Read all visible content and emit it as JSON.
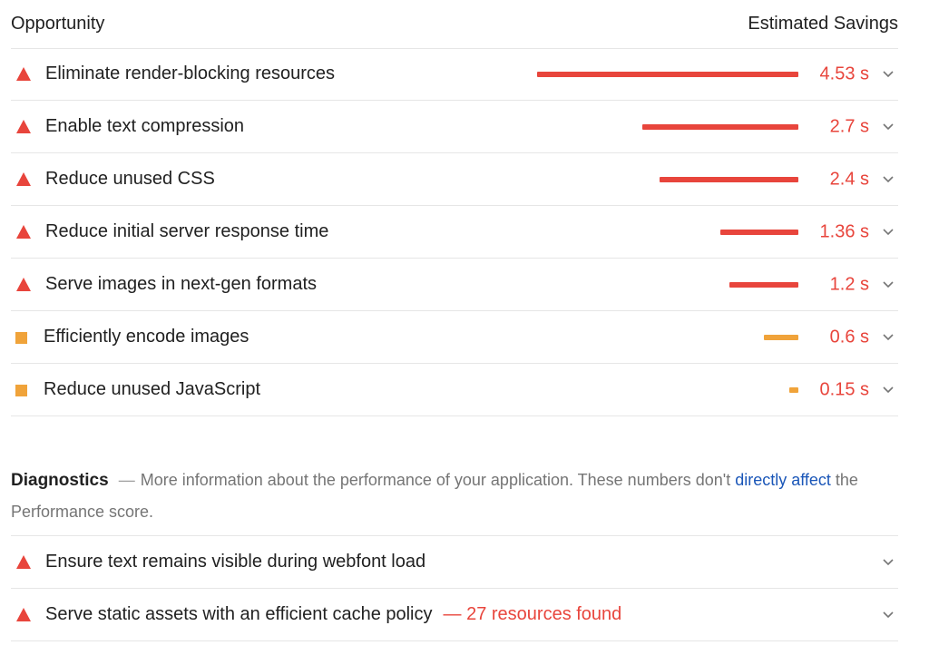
{
  "header": {
    "left_label": "Opportunity",
    "right_label": "Estimated Savings"
  },
  "opportunities": [
    {
      "title": "Eliminate render-blocking resources",
      "value": "4.53 s",
      "severity": "fail",
      "savings_seconds": 4.53
    },
    {
      "title": "Enable text compression",
      "value": "2.7 s",
      "severity": "fail",
      "savings_seconds": 2.7
    },
    {
      "title": "Reduce unused CSS",
      "value": "2.4 s",
      "severity": "fail",
      "savings_seconds": 2.4
    },
    {
      "title": "Reduce initial server response time",
      "value": "1.36 s",
      "severity": "fail",
      "savings_seconds": 1.36
    },
    {
      "title": "Serve images in next-gen formats",
      "value": "1.2 s",
      "severity": "fail",
      "savings_seconds": 1.2
    },
    {
      "title": "Efficiently encode images",
      "value": "0.6 s",
      "severity": "average",
      "savings_seconds": 0.6
    },
    {
      "title": "Reduce unused JavaScript",
      "value": "0.15 s",
      "severity": "average",
      "savings_seconds": 0.15
    }
  ],
  "diagnostics": {
    "title": "Diagnostics",
    "dash": "—",
    "description_before": "More information about the performance of your application. These numbers don't ",
    "link_text": "directly affect",
    "description_after": " the Performance score.",
    "items": [
      {
        "title": "Ensure text remains visible during webfont load",
        "extra": ""
      },
      {
        "title": "Serve static assets with an efficient cache policy",
        "extra": "— 27 resources found"
      }
    ]
  },
  "colors": {
    "fail": "#e8453c",
    "average": "#f0a33a",
    "link": "#1a56b8",
    "divider": "#e6e6e6"
  },
  "icons": {
    "fail": "warning-triangle-icon",
    "average": "orange-square-icon",
    "expand": "chevron-down-icon"
  }
}
